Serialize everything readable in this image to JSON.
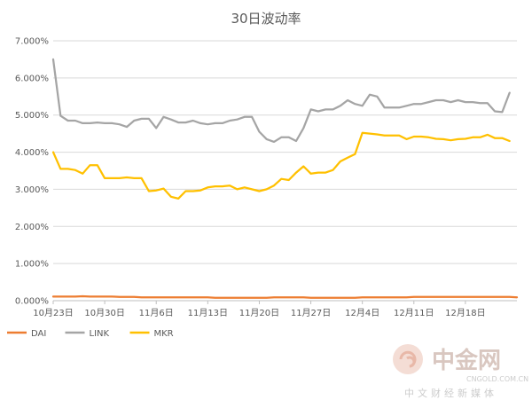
{
  "chart_data": {
    "type": "line",
    "title": "30日波动率",
    "xlabel": "",
    "ylabel": "",
    "ylim": [
      0,
      7.0
    ],
    "y_ticks": [
      "0.000%",
      "1.000%",
      "2.000%",
      "3.000%",
      "4.000%",
      "5.000%",
      "6.000%",
      "7.000%"
    ],
    "x_tick_labels": [
      "10月23日",
      "10月30日",
      "11月6日",
      "11月13日",
      "11月20日",
      "11月27日",
      "12月4日",
      "12月11日",
      "12月18日"
    ],
    "x_tick_index": [
      0,
      7,
      14,
      21,
      28,
      35,
      42,
      49,
      56
    ],
    "grid": true,
    "legend_position": "bottom-left",
    "series": [
      {
        "name": "DAI",
        "color": "#ED7D31",
        "values": [
          0.11,
          0.11,
          0.11,
          0.11,
          0.12,
          0.11,
          0.11,
          0.11,
          0.11,
          0.1,
          0.1,
          0.1,
          0.09,
          0.09,
          0.09,
          0.09,
          0.09,
          0.09,
          0.09,
          0.09,
          0.09,
          0.09,
          0.08,
          0.08,
          0.08,
          0.08,
          0.08,
          0.08,
          0.08,
          0.08,
          0.09,
          0.09,
          0.09,
          0.09,
          0.09,
          0.08,
          0.08,
          0.08,
          0.08,
          0.08,
          0.08,
          0.08,
          0.09,
          0.09,
          0.09,
          0.09,
          0.09,
          0.09,
          0.09,
          0.1,
          0.1,
          0.1,
          0.1,
          0.1,
          0.1,
          0.1,
          0.1,
          0.1,
          0.1,
          0.1,
          0.1,
          0.1,
          0.1,
          0.09
        ]
      },
      {
        "name": "LINK",
        "color": "#A5A5A5",
        "values": [
          6.5,
          4.98,
          4.85,
          4.85,
          4.78,
          4.78,
          4.8,
          4.78,
          4.78,
          4.75,
          4.68,
          4.85,
          4.9,
          4.9,
          4.65,
          4.95,
          4.88,
          4.8,
          4.8,
          4.85,
          4.78,
          4.75,
          4.78,
          4.78,
          4.85,
          4.88,
          4.95,
          4.95,
          4.55,
          4.35,
          4.28,
          4.4,
          4.4,
          4.3,
          4.65,
          5.15,
          5.1,
          5.15,
          5.15,
          5.25,
          5.4,
          5.3,
          5.25,
          5.55,
          5.5,
          5.2,
          5.2,
          5.2,
          5.25,
          5.3,
          5.3,
          5.35,
          5.4,
          5.4,
          5.35,
          5.4,
          5.35,
          5.35,
          5.32,
          5.32,
          5.1,
          5.08,
          5.6
        ]
      },
      {
        "name": "MKR",
        "color": "#FFC000",
        "values": [
          4.0,
          3.55,
          3.55,
          3.52,
          3.42,
          3.65,
          3.65,
          3.3,
          3.3,
          3.3,
          3.32,
          3.3,
          3.3,
          2.95,
          2.97,
          3.02,
          2.8,
          2.75,
          2.95,
          2.95,
          2.97,
          3.05,
          3.08,
          3.08,
          3.1,
          3.0,
          3.05,
          3.0,
          2.95,
          3.0,
          3.1,
          3.28,
          3.25,
          3.45,
          3.62,
          3.42,
          3.45,
          3.45,
          3.52,
          3.75,
          3.85,
          3.95,
          4.52,
          4.5,
          4.48,
          4.45,
          4.45,
          4.45,
          4.35,
          4.42,
          4.42,
          4.4,
          4.36,
          4.35,
          4.32,
          4.35,
          4.36,
          4.4,
          4.4,
          4.47,
          4.38,
          4.38,
          4.3
        ]
      }
    ]
  },
  "watermark": {
    "brand": "中金网",
    "url": "CNGOLD.COM.CN",
    "tagline": "中文财经新媒体"
  }
}
